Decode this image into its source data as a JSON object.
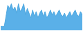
{
  "chart_data": {
    "type": "area",
    "series": [
      {
        "type": "area",
        "color": "#5ab0e8",
        "values": [
          5,
          5,
          5,
          18,
          32,
          28,
          34,
          26,
          30,
          22,
          34,
          24,
          28,
          34,
          20,
          28,
          22,
          16,
          26,
          18,
          24,
          16,
          22,
          26,
          18,
          24,
          16,
          20,
          26,
          20,
          24,
          18,
          22,
          26,
          20,
          18,
          22,
          16,
          20,
          24,
          18,
          22,
          26,
          20,
          18,
          24,
          20
        ]
      },
      {
        "type": "line",
        "color": "#4fa8e0",
        "values": [
          5,
          5,
          5,
          18,
          32,
          28,
          34,
          26,
          30,
          22,
          34,
          24,
          28,
          34,
          20,
          28,
          22,
          16,
          26,
          18,
          24,
          16,
          22,
          26,
          18,
          24,
          16,
          20,
          26,
          20,
          24,
          18,
          22,
          26,
          20,
          18,
          22,
          16,
          20,
          24,
          18,
          22,
          26,
          20,
          18,
          24,
          20
        ]
      }
    ],
    "xlim": [
      0,
      46
    ],
    "ylim": [
      0,
      38
    ],
    "tick_labels": false
  }
}
